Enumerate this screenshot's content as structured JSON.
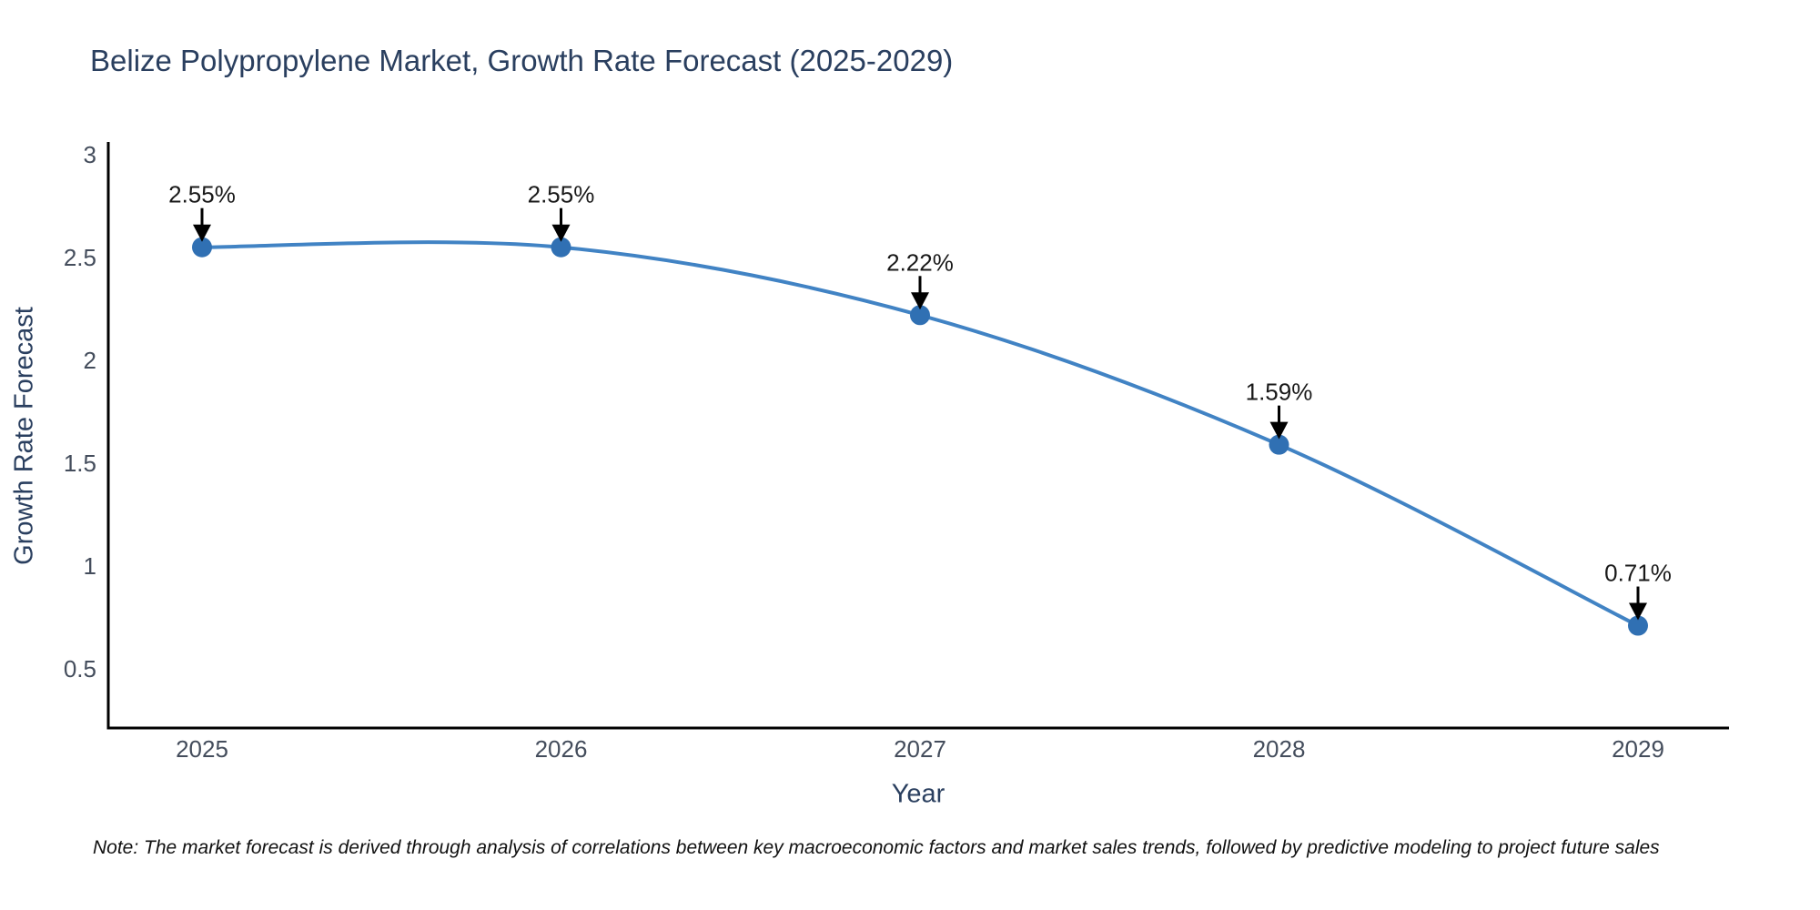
{
  "title": "Belize Polypropylene Market, Growth Rate Forecast (2025-2029)",
  "note": "Note: The market forecast is derived through analysis of correlations between key macroeconomic factors and market sales trends, followed by predictive modeling to project future sales",
  "chart_data": {
    "type": "line",
    "title": "Belize Polypropylene Market, Growth Rate Forecast (2025-2029)",
    "xlabel": "Year",
    "ylabel": "Growth Rate Forecast",
    "categories": [
      "2025",
      "2026",
      "2027",
      "2028",
      "2029"
    ],
    "x": [
      2025,
      2026,
      2027,
      2028,
      2029
    ],
    "values": [
      2.55,
      2.55,
      2.22,
      1.59,
      0.71
    ],
    "point_labels": [
      "2.55%",
      "2.55%",
      "2.22%",
      "1.59%",
      "0.71%"
    ],
    "y_ticks": [
      3,
      2.5,
      2,
      1.5,
      1,
      0.5
    ],
    "y_tick_labels": [
      "3",
      "2.5",
      "2",
      "1.5",
      "1",
      "0.5"
    ],
    "ylim": [
      0.22,
      3.05
    ],
    "grid": false,
    "legend": "none",
    "line_smooth": true,
    "annotation_arrows": true,
    "colors": {
      "line": "#4183c4",
      "marker": "#3070b3",
      "axis": "#000000",
      "title_text": "#2a3f5f",
      "tick_text": "#444d5c",
      "annotation_text": "#191919"
    }
  }
}
